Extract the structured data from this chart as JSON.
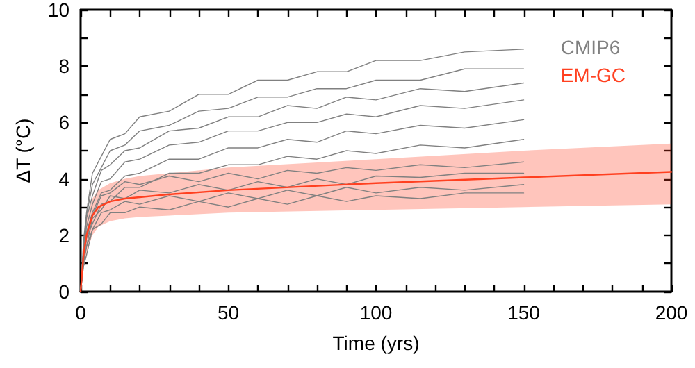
{
  "chart_data": {
    "type": "line",
    "xlabel": "Time (yrs)",
    "ylabel": "ΔT (°C)",
    "xlim": [
      0,
      200
    ],
    "ylim": [
      0,
      10
    ],
    "xticks": [
      0,
      {
        "value": 10,
        "label": null
      },
      {
        "value": 20,
        "label": null
      },
      {
        "value": 30,
        "label": null
      },
      {
        "value": 40,
        "label": null
      },
      50,
      {
        "value": 60,
        "label": null
      },
      {
        "value": 70,
        "label": null
      },
      {
        "value": 80,
        "label": null
      },
      {
        "value": 90,
        "label": null
      },
      100,
      {
        "value": 110,
        "label": null
      },
      {
        "value": 120,
        "label": null
      },
      {
        "value": 130,
        "label": null
      },
      {
        "value": 140,
        "label": null
      },
      150,
      {
        "value": 160,
        "label": null
      },
      {
        "value": 170,
        "label": null
      },
      {
        "value": 180,
        "label": null
      },
      {
        "value": 190,
        "label": null
      },
      200
    ],
    "yticks": [
      0,
      {
        "value": 1,
        "label": null
      },
      2,
      {
        "value": 3,
        "label": null
      },
      4,
      {
        "value": 5,
        "label": null
      },
      6,
      {
        "value": 7,
        "label": null
      },
      8,
      {
        "value": 9,
        "label": null
      },
      10
    ],
    "x": [
      0,
      1,
      2,
      4,
      7,
      10,
      15,
      20,
      30,
      40,
      50,
      60,
      70,
      80,
      90,
      100,
      115,
      130,
      150
    ],
    "legend": "top right",
    "grid": false,
    "marker": "none",
    "line_style": "solid",
    "series": [
      {
        "name": "CMIP6",
        "color": "#808080",
        "values": [
          0,
          1.8,
          2.8,
          4.2,
          4.8,
          5.4,
          5.6,
          6.2,
          6.4,
          7.0,
          7.0,
          7.5,
          7.5,
          7.8,
          7.8,
          8.2,
          8.2,
          8.5,
          8.6
        ]
      },
      {
        "color": "#808080",
        "values": [
          0,
          1.5,
          2.7,
          3.8,
          4.4,
          5.0,
          5.2,
          5.7,
          5.9,
          6.4,
          6.5,
          6.9,
          6.9,
          7.2,
          7.2,
          7.5,
          7.5,
          7.9,
          7.9
        ]
      },
      {
        "color": "#808080",
        "values": [
          0,
          1.4,
          2.6,
          3.4,
          4.3,
          4.5,
          5.0,
          5.1,
          5.7,
          5.8,
          6.2,
          6.2,
          6.6,
          6.5,
          6.9,
          6.8,
          7.2,
          7.1,
          7.4
        ]
      },
      {
        "color": "#808080",
        "values": [
          0,
          1.4,
          2.3,
          3.1,
          3.9,
          4.0,
          4.6,
          4.7,
          5.2,
          5.3,
          5.7,
          5.7,
          6.0,
          6.0,
          6.3,
          6.2,
          6.6,
          6.5,
          6.8
        ]
      },
      {
        "color": "#808080",
        "values": [
          0,
          1.2,
          2.1,
          2.8,
          3.5,
          3.6,
          4.1,
          4.2,
          4.7,
          4.7,
          5.1,
          5.1,
          5.4,
          5.3,
          5.7,
          5.6,
          5.9,
          5.8,
          6.1
        ]
      },
      {
        "color": "#808080",
        "values": [
          0,
          1.1,
          1.9,
          2.4,
          3.1,
          3.2,
          3.7,
          3.7,
          4.2,
          4.2,
          4.5,
          4.5,
          4.8,
          4.7,
          5.0,
          4.9,
          5.2,
          5.1,
          5.4
        ]
      },
      {
        "color": "#808080",
        "values": [
          0,
          1.2,
          1.9,
          2.7,
          3.4,
          3.5,
          3.9,
          3.8,
          4.1,
          3.9,
          4.2,
          4.0,
          4.3,
          4.2,
          4.4,
          4.3,
          4.5,
          4.4,
          4.6
        ]
      },
      {
        "color": "#808080",
        "values": [
          0,
          1.1,
          1.6,
          2.6,
          2.9,
          3.4,
          3.3,
          3.6,
          3.5,
          3.8,
          3.6,
          3.9,
          3.7,
          4.0,
          3.8,
          4.1,
          4.05,
          4.2,
          4.2
        ]
      },
      {
        "color": "#808080",
        "values": [
          0,
          1.0,
          1.6,
          2.2,
          2.8,
          2.9,
          3.2,
          3.1,
          3.4,
          3.2,
          3.5,
          3.3,
          3.6,
          3.4,
          3.7,
          3.5,
          3.7,
          3.6,
          3.8
        ]
      },
      {
        "color": "#808080",
        "values": [
          0,
          0.9,
          1.3,
          2.2,
          2.4,
          2.8,
          2.8,
          3.0,
          2.9,
          3.2,
          3.0,
          3.3,
          3.1,
          3.4,
          3.2,
          3.4,
          3.3,
          3.5,
          3.5
        ]
      },
      {
        "name": "EM-GC",
        "color": "#ff4020",
        "x": [
          0,
          1,
          2,
          4,
          6,
          10,
          15,
          20,
          30,
          50,
          100,
          150,
          200
        ],
        "values": [
          0,
          1.3,
          2.0,
          2.7,
          3.0,
          3.2,
          3.3,
          3.35,
          3.45,
          3.6,
          3.85,
          4.05,
          4.25
        ],
        "lower": [
          0,
          0.8,
          1.4,
          2.0,
          2.3,
          2.5,
          2.6,
          2.65,
          2.7,
          2.8,
          2.9,
          3.0,
          3.1
        ],
        "upper": [
          0,
          1.7,
          2.6,
          3.3,
          3.6,
          3.85,
          4.0,
          4.1,
          4.2,
          4.4,
          4.7,
          5.0,
          5.25
        ]
      }
    ]
  }
}
